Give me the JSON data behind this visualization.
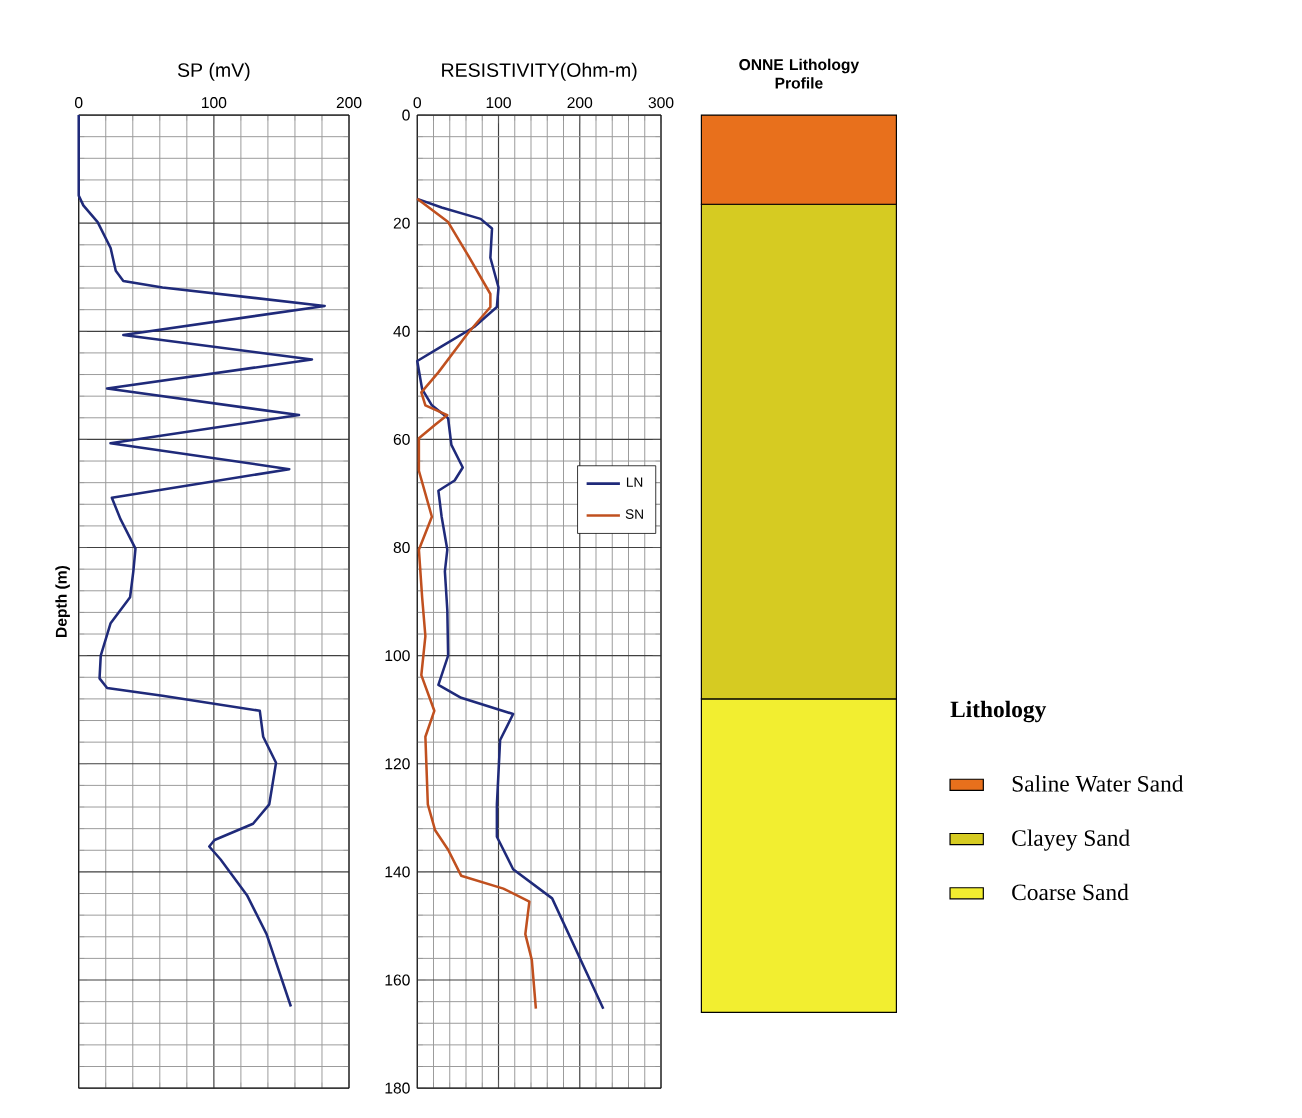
{
  "chart_data": [
    {
      "type": "line",
      "xlabel": "SP (mV)",
      "ylabel": "Depth (m)",
      "xlim": [
        0,
        200
      ],
      "xticks": [
        0,
        100,
        200
      ],
      "ylim": [
        180,
        0
      ],
      "yticks": [
        0,
        20,
        40,
        60,
        80,
        100,
        120,
        140,
        160,
        180
      ],
      "grid": true,
      "tick_labels": "x",
      "series": [
        {
          "color": "#1f2a7a",
          "x": [
            0,
            0,
            3.4,
            14,
            23.6,
            27.4,
            33,
            62,
            182,
            33,
            172.6,
            21,
            163,
            23.5,
            155.8,
            24.5,
            31,
            42,
            40.4,
            38,
            23.6,
            16.3,
            15.4,
            21,
            62,
            134,
            136.5,
            146,
            141,
            129,
            100.5,
            96.6,
            105,
            124.5,
            139,
            157
          ],
          "values": [
            0,
            14.9,
            16.7,
            19.8,
            24.6,
            28.8,
            30.7,
            31.9,
            35.3,
            40.7,
            45.2,
            50.6,
            55.5,
            60.7,
            65.5,
            70.8,
            74.8,
            80.2,
            84.4,
            89.2,
            94,
            100,
            104.2,
            106,
            107.4,
            110.2,
            115,
            119.8,
            127.5,
            131.1,
            134.1,
            135.3,
            137.7,
            144.3,
            151.5,
            164.9
          ]
        }
      ]
    },
    {
      "type": "line",
      "xlabel": "RESISTIVITY(Ohm-m)",
      "xlim": [
        0,
        300
      ],
      "xticks": [
        0,
        100,
        200,
        300
      ],
      "ylim": [
        180,
        0
      ],
      "yticks": [
        0,
        20,
        40,
        60,
        80,
        100,
        120,
        140,
        160,
        180
      ],
      "grid": true,
      "legend": "right",
      "series": [
        {
          "name": "LN",
          "color": "#1f2a7a",
          "x": [
            0,
            30,
            78,
            92,
            90,
            100,
            98,
            70,
            30,
            0,
            6,
            18,
            38,
            42,
            56,
            46,
            26,
            30,
            37,
            34,
            37,
            38,
            26,
            54,
            118,
            102,
            98,
            98,
            118,
            166,
            229
          ],
          "values": [
            15.5,
            17.1,
            19.2,
            21,
            26.4,
            31.9,
            35.5,
            39.2,
            42.8,
            45.5,
            50.7,
            53.7,
            56.1,
            61,
            65.2,
            67.6,
            69.5,
            74.3,
            80.4,
            84.4,
            91.6,
            100,
            105.4,
            107.8,
            110.8,
            115.6,
            127.5,
            133.5,
            139.5,
            144.9,
            165.3
          ]
        },
        {
          "name": "SN",
          "color": "#c0501f",
          "x": [
            0,
            38,
            62,
            90,
            90,
            62,
            50,
            26,
            5,
            10,
            37,
            22,
            2,
            2,
            18,
            2,
            6,
            10,
            5,
            21,
            10,
            13,
            22,
            38,
            54,
            106,
            138,
            133,
            141,
            146
          ],
          "values": [
            15.5,
            19.8,
            25.8,
            33.1,
            35.5,
            40.4,
            42.8,
            47.6,
            51.3,
            53.7,
            55.5,
            57.3,
            59.8,
            65.8,
            74.3,
            80.4,
            89.2,
            96.4,
            103.6,
            110.2,
            115,
            127.5,
            132.3,
            135.9,
            140.7,
            143.1,
            145.5,
            151.5,
            156.3,
            165.3
          ]
        }
      ]
    },
    {
      "type": "bar",
      "title": "ONNE Lithology Profile",
      "stacked": true,
      "categories": [
        null
      ],
      "ylim": [
        180,
        0
      ],
      "tick_labels": false,
      "legend": "right",
      "legend_title": "Lithology",
      "series": [
        {
          "name": "Saline Water Sand",
          "color": "#e8701c",
          "values": [
            16.5
          ]
        },
        {
          "name": "Clayey Sand",
          "color": "#d6cb22",
          "values": [
            91.5
          ]
        },
        {
          "name": "Coarse Sand",
          "color": "#f2ee30",
          "values": [
            58
          ]
        }
      ]
    }
  ]
}
